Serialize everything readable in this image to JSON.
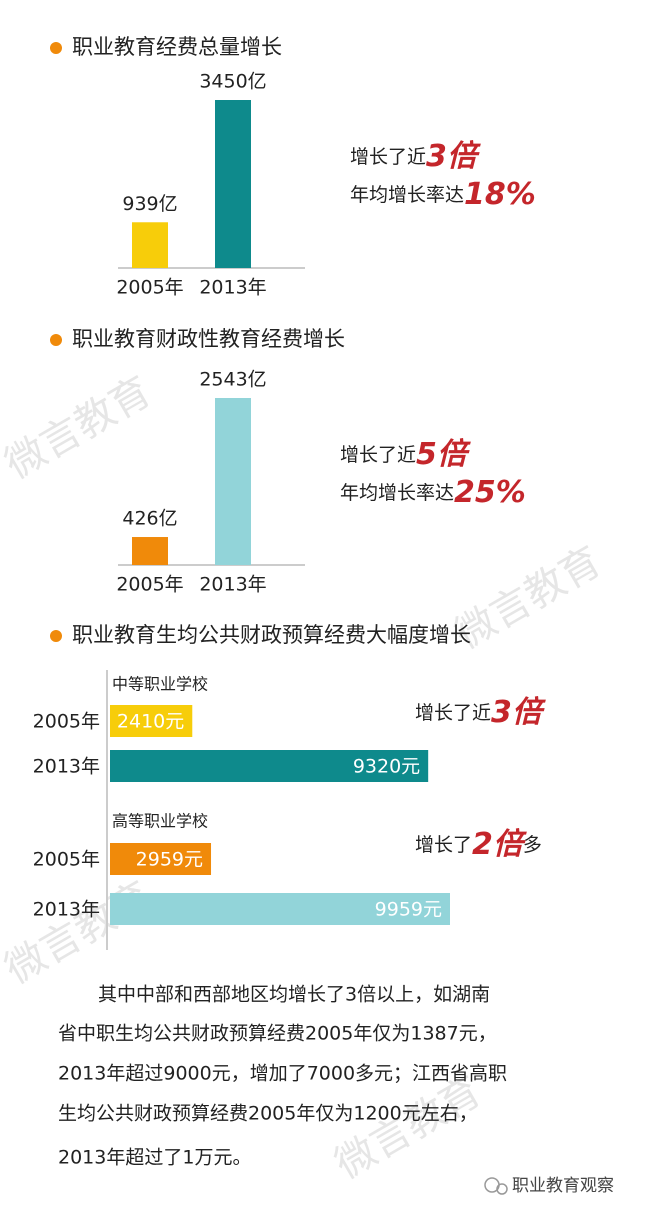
{
  "watermark": "微言教育",
  "chart_data": [
    {
      "type": "bar",
      "title": "职业教育经费总量增长",
      "categories": [
        "2005年",
        "2013年"
      ],
      "values": [
        939,
        3450
      ],
      "value_labels": [
        "939亿",
        "3450亿"
      ],
      "colors": [
        "#f7cd0a",
        "#0e8a8c"
      ],
      "annotations": [
        {
          "text": "增长了近",
          "highlight": "3倍"
        },
        {
          "text": "年均增长率达",
          "highlight": "18%"
        }
      ]
    },
    {
      "type": "bar",
      "title": "职业教育财政性教育经费增长",
      "categories": [
        "2005年",
        "2013年"
      ],
      "values": [
        426,
        2543
      ],
      "value_labels": [
        "426亿",
        "2543亿"
      ],
      "colors": [
        "#f08a0a",
        "#92d4d9"
      ],
      "annotations": [
        {
          "text": "增长了近",
          "highlight": "5倍"
        },
        {
          "text": "年均增长率达",
          "highlight": "25%"
        }
      ]
    },
    {
      "type": "barh",
      "title": "职业教育生均公共财政预算经费大幅度增长",
      "groups": [
        {
          "name": "中等职业学校",
          "categories": [
            "2005年",
            "2013年"
          ],
          "values": [
            2410,
            9320
          ],
          "value_labels": [
            "2410元",
            "9320元"
          ],
          "colors": [
            "#f7cd0a",
            "#0e8a8c"
          ],
          "annotation": {
            "text": "增长了近",
            "highlight": "3倍"
          }
        },
        {
          "name": "高等职业学校",
          "categories": [
            "2005年",
            "2013年"
          ],
          "values": [
            2959,
            9959
          ],
          "value_labels": [
            "2959元",
            "9959元"
          ],
          "colors": [
            "#f08a0a",
            "#92d4d9"
          ],
          "annotation": {
            "text": "增长了",
            "highlight": "2倍",
            "suffix": "多"
          }
        }
      ]
    }
  ],
  "paragraph": [
    "其中中部和西部地区均增长了3倍以上，如湖南",
    "省中职生均公共财政预算经费2005年仅为1387元，",
    "2013年超过9000元，增加了7000多元；江西省高职",
    "生均公共财政预算经费2005年仅为1200元左右，",
    "2013年超过了1万元。"
  ],
  "footer": "职业教育观察"
}
